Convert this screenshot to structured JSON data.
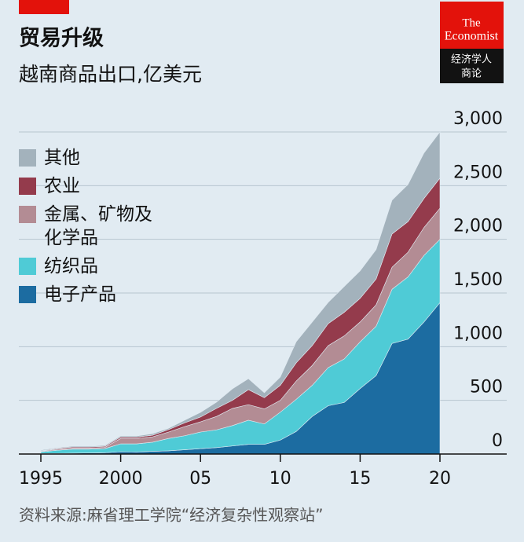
{
  "chart_data": {
    "type": "stacked-area",
    "title": "贸易升级",
    "subtitle": "越南商品出口,亿美元",
    "source": "资料来源:麻省理工学院“经济复杂性观察站”",
    "x": [
      1995,
      1996,
      1997,
      1998,
      1999,
      2000,
      2001,
      2002,
      2003,
      2004,
      2005,
      2006,
      2007,
      2008,
      2009,
      2010,
      2011,
      2012,
      2013,
      2014,
      2015,
      2016,
      2017,
      2018,
      2019,
      2020
    ],
    "xlim": [
      1995,
      2020
    ],
    "xticks": [
      1995,
      2000,
      {
        "value": 2005,
        "label": "05"
      },
      {
        "value": 2010,
        "label": "10"
      },
      {
        "value": 2015,
        "label": "15"
      },
      {
        "value": 2020,
        "label": "20"
      }
    ],
    "ylim": [
      0,
      3000
    ],
    "yticks": [
      0,
      500,
      {
        "value": 1000,
        "label": "1,000"
      },
      {
        "value": 1500,
        "label": "1,500"
      },
      {
        "value": 2000,
        "label": "2,000"
      },
      {
        "value": 2500,
        "label": "2,500"
      },
      {
        "value": 3000,
        "label": "3,000"
      }
    ],
    "grid": true,
    "legend": "top-left",
    "series": [
      {
        "name": "电子产品",
        "color": "#1c6ca1",
        "values": [
          5,
          5,
          8,
          10,
          12,
          22,
          20,
          25,
          30,
          40,
          50,
          60,
          75,
          90,
          90,
          130,
          210,
          350,
          450,
          480,
          610,
          730,
          1030,
          1070,
          1230,
          1410
        ]
      },
      {
        "name": "纺织品",
        "color": "#4fcbd6",
        "values": [
          15,
          30,
          37,
          35,
          38,
          73,
          75,
          85,
          115,
          130,
          155,
          165,
          190,
          225,
          190,
          260,
          300,
          290,
          355,
          405,
          435,
          460,
          505,
          580,
          620,
          590
        ]
      },
      {
        "name": "金属、矿物及化学品",
        "color": "#b38c94",
        "values": [
          5,
          10,
          10,
          10,
          12,
          50,
          50,
          50,
          60,
          85,
          95,
          125,
          160,
          145,
          140,
          110,
          170,
          185,
          205,
          215,
          185,
          200,
          205,
          230,
          260,
          290
        ]
      },
      {
        "name": "农业",
        "color": "#943b4c",
        "values": [
          5,
          7,
          10,
          10,
          10,
          13,
          13,
          15,
          23,
          35,
          45,
          75,
          75,
          140,
          105,
          140,
          170,
          185,
          205,
          220,
          220,
          240,
          310,
          285,
          270,
          280
        ]
      },
      {
        "name": "其他",
        "color": "#a3b2bc",
        "values": [
          7,
          6,
          8,
          8,
          8,
          10,
          10,
          15,
          12,
          25,
          43,
          58,
          107,
          102,
          46,
          77,
          197,
          220,
          198,
          240,
          256,
          274,
          315,
          346,
          424,
          430
        ]
      }
    ]
  },
  "logo": {
    "line1": "The",
    "line2": "Economist",
    "cn1": "经济学人",
    "cn2": "商论"
  }
}
